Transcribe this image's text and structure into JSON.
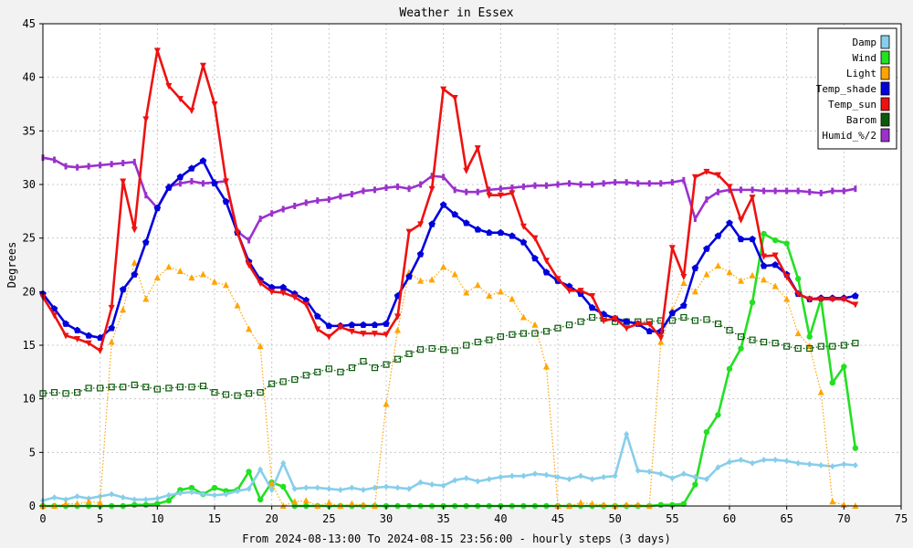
{
  "chart_data": {
    "type": "line",
    "title": "Weather in Essex",
    "xlabel": "From 2024-08-13:00 To 2024-08-15 23:56:00 - hourly steps (3 days)",
    "ylabel": "Degrees",
    "xlim": [
      0,
      75
    ],
    "ylim": [
      0,
      45
    ],
    "xticks": [
      0,
      5,
      10,
      15,
      20,
      25,
      30,
      35,
      40,
      45,
      50,
      55,
      60,
      65,
      70,
      75
    ],
    "yticks": [
      0,
      5,
      10,
      15,
      20,
      25,
      30,
      35,
      40,
      45
    ],
    "grid": true,
    "legend_position": "top-right",
    "x": [
      0,
      1,
      2,
      3,
      4,
      5,
      6,
      7,
      8,
      9,
      10,
      11,
      12,
      13,
      14,
      15,
      16,
      17,
      18,
      19,
      20,
      21,
      22,
      23,
      24,
      25,
      26,
      27,
      28,
      29,
      30,
      31,
      32,
      33,
      34,
      35,
      36,
      37,
      38,
      39,
      40,
      41,
      42,
      43,
      44,
      45,
      46,
      47,
      48,
      49,
      50,
      51,
      52,
      53,
      54,
      55,
      56,
      57,
      58,
      59,
      60,
      61,
      62,
      63,
      64,
      65,
      66,
      67,
      68,
      69,
      70,
      71
    ],
    "series": [
      {
        "name": "Damp",
        "color": "#87ceeb",
        "marker": "diamond",
        "style": "solid",
        "values": [
          0.5,
          0.8,
          0.6,
          0.9,
          0.7,
          0.9,
          1.1,
          0.8,
          0.6,
          0.6,
          0.7,
          1.0,
          1.2,
          1.3,
          1.1,
          1.0,
          1.1,
          1.4,
          1.6,
          3.4,
          1.5,
          4.0,
          1.6,
          1.7,
          1.7,
          1.6,
          1.5,
          1.7,
          1.5,
          1.7,
          1.8,
          1.7,
          1.6,
          2.2,
          2.0,
          1.9,
          2.4,
          2.6,
          2.3,
          2.5,
          2.7,
          2.8,
          2.8,
          3.0,
          2.9,
          2.7,
          2.5,
          2.8,
          2.5,
          2.7,
          2.8,
          6.7,
          3.3,
          3.2,
          3.0,
          2.6,
          3.0,
          2.7,
          2.5,
          3.6,
          4.1,
          4.3,
          4.0,
          4.3,
          4.3,
          4.2,
          4.0,
          3.9,
          3.8,
          3.7,
          3.9,
          3.8
        ]
      },
      {
        "name": "Wind",
        "color": "#22e022",
        "marker": "circle",
        "style": "solid",
        "values": [
          0,
          0,
          0,
          0,
          0,
          0,
          0,
          0,
          0.1,
          0.1,
          0.2,
          0.5,
          1.5,
          1.7,
          1.1,
          1.7,
          1.4,
          1.5,
          3.2,
          0.6,
          2.2,
          1.8,
          0,
          0,
          0,
          0,
          0,
          0,
          0,
          0,
          0,
          0,
          0,
          0,
          0,
          0,
          0,
          0,
          0,
          0,
          0,
          0,
          0,
          0,
          0,
          0,
          0,
          0,
          0,
          0,
          0,
          0,
          0,
          0,
          0.1,
          0.1,
          0.2,
          2.0,
          6.9,
          8.5,
          12.8,
          14.7,
          19.0,
          25.4,
          24.8,
          24.5,
          21.2,
          15.8,
          19.3,
          11.5,
          13.0,
          5.4
        ]
      },
      {
        "name": "Light",
        "color": "#ffa500",
        "marker": "triangle",
        "style": "dotted",
        "values": [
          0,
          0,
          0.2,
          0.2,
          0.4,
          0.3,
          15.3,
          18.3,
          22.7,
          19.3,
          21.3,
          22.3,
          21.9,
          21.3,
          21.6,
          20.9,
          20.6,
          18.7,
          16.5,
          14.9,
          2.1,
          0,
          0.4,
          0.5,
          0,
          0.3,
          0,
          0.2,
          0.1,
          0,
          9.5,
          16.4,
          21.8,
          21.0,
          21.1,
          22.3,
          21.6,
          19.9,
          20.6,
          19.6,
          20.0,
          19.3,
          17.6,
          16.9,
          13.0,
          0,
          0,
          0.3,
          0.2,
          0.1,
          0,
          0.1,
          0.1,
          0,
          15.3,
          18.3,
          20.8,
          20.0,
          21.6,
          22.4,
          21.8,
          21.0,
          21.5,
          21.1,
          20.5,
          19.3,
          16.1,
          14.9,
          10.6,
          0.4,
          0.1,
          0
        ]
      },
      {
        "name": "Temp_shade",
        "color": "#0000dd",
        "marker": "pentagon",
        "style": "solid",
        "values": [
          19.8,
          18.4,
          17.0,
          16.4,
          15.9,
          15.7,
          16.6,
          20.2,
          21.6,
          24.6,
          27.8,
          29.7,
          30.7,
          31.5,
          32.2,
          30.1,
          28.4,
          25.5,
          22.8,
          21.1,
          20.4,
          20.4,
          19.8,
          19.2,
          17.7,
          16.8,
          16.8,
          16.9,
          16.9,
          16.9,
          17.0,
          19.6,
          21.4,
          23.5,
          26.3,
          28.1,
          27.2,
          26.4,
          25.8,
          25.5,
          25.5,
          25.2,
          24.6,
          23.1,
          21.8,
          21.0,
          20.5,
          19.8,
          18.5,
          17.9,
          17.5,
          17.2,
          17.0,
          16.3,
          16.3,
          18.0,
          18.7,
          22.2,
          24.0,
          25.2,
          26.4,
          24.9,
          24.9,
          22.4,
          22.5,
          21.6,
          19.8,
          19.3,
          19.4,
          19.4,
          19.4,
          19.6
        ]
      },
      {
        "name": "Temp_sun",
        "color": "#ee1111",
        "marker": "tri-down",
        "style": "solid",
        "values": [
          19.5,
          17.8,
          15.9,
          15.6,
          15.2,
          14.5,
          18.5,
          30.3,
          25.8,
          36.1,
          42.5,
          39.2,
          38.0,
          36.9,
          41.1,
          37.5,
          30.3,
          25.5,
          22.5,
          20.8,
          20.0,
          19.9,
          19.5,
          18.8,
          16.5,
          15.8,
          16.7,
          16.3,
          16.1,
          16.1,
          16.0,
          17.7,
          25.6,
          26.3,
          29.6,
          38.9,
          38.1,
          31.3,
          33.4,
          29.0,
          29.0,
          29.2,
          26.1,
          25.0,
          22.9,
          21.2,
          20.1,
          20.1,
          19.6,
          17.3,
          17.5,
          16.6,
          17.0,
          17.0,
          15.7,
          24.1,
          21.4,
          30.7,
          31.2,
          30.9,
          29.8,
          26.7,
          28.8,
          23.3,
          23.4,
          21.4,
          19.8,
          19.3,
          19.3,
          19.3,
          19.3,
          18.8
        ]
      },
      {
        "name": "Barom",
        "color": "#0a5a0a",
        "marker": "square",
        "style": "dotted",
        "values": [
          10.5,
          10.6,
          10.5,
          10.6,
          11.0,
          11.0,
          11.1,
          11.1,
          11.3,
          11.1,
          10.9,
          11.0,
          11.1,
          11.1,
          11.2,
          10.6,
          10.4,
          10.3,
          10.5,
          10.6,
          11.4,
          11.6,
          11.8,
          12.2,
          12.5,
          12.8,
          12.5,
          12.9,
          13.5,
          12.9,
          13.2,
          13.7,
          14.2,
          14.6,
          14.7,
          14.6,
          14.5,
          15.0,
          15.3,
          15.5,
          15.8,
          16.0,
          16.1,
          16.1,
          16.3,
          16.6,
          16.9,
          17.2,
          17.6,
          17.5,
          17.2,
          17.2,
          17.2,
          17.2,
          17.3,
          17.3,
          17.6,
          17.3,
          17.4,
          17.0,
          16.4,
          15.8,
          15.5,
          15.3,
          15.2,
          14.9,
          14.7,
          14.7,
          14.9,
          14.9,
          15.0,
          15.2
        ]
      },
      {
        "name": "Humid_%/2",
        "color": "#9a32cd",
        "marker": "vbar",
        "style": "solid",
        "values": [
          32.5,
          32.3,
          31.7,
          31.6,
          31.7,
          31.8,
          31.9,
          32.0,
          32.1,
          29.0,
          27.8,
          29.8,
          30.1,
          30.3,
          30.1,
          30.2,
          30.3,
          25.6,
          24.8,
          26.8,
          27.3,
          27.7,
          28.0,
          28.3,
          28.5,
          28.6,
          28.9,
          29.1,
          29.4,
          29.5,
          29.7,
          29.8,
          29.6,
          30.0,
          30.8,
          30.7,
          29.5,
          29.3,
          29.3,
          29.5,
          29.6,
          29.7,
          29.8,
          29.9,
          29.9,
          30.0,
          30.1,
          30.0,
          30.0,
          30.1,
          30.2,
          30.2,
          30.1,
          30.1,
          30.1,
          30.2,
          30.4,
          26.8,
          28.6,
          29.3,
          29.5,
          29.5,
          29.5,
          29.4,
          29.4,
          29.4,
          29.4,
          29.3,
          29.2,
          29.4,
          29.4,
          29.6
        ]
      }
    ]
  }
}
